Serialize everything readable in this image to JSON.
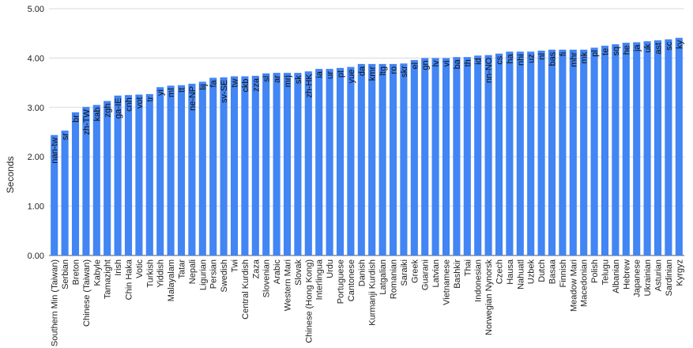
{
  "chart_data": {
    "type": "bar",
    "ylabel": "Seconds",
    "ylim": [
      0,
      5
    ],
    "yticks": [
      "0.00",
      "1.00",
      "2.00",
      "3.00",
      "4.00",
      "5.00"
    ],
    "grid": true,
    "bar_color": "#4285f4",
    "categories": [
      "Southern Min (Taiwan)",
      "Serbian",
      "Breton",
      "Chinese (Taiwan)",
      "Kabyle",
      "Tamazight",
      "Irish",
      "Chin Haka",
      "Votic",
      "Turkish",
      "Yiddish",
      "Malayalam",
      "Tatar",
      "Nepali",
      "Ligurian",
      "Persian",
      "Swedish",
      "Twi",
      "Central Kurdish",
      "Zaza",
      "Slovenian",
      "Arabic",
      "Western Mari",
      "Slovak",
      "Chinese (Hong Kong)",
      "Interlingua",
      "Urdu",
      "Portuguese",
      "Cantonese",
      "Danish",
      "Kurmanji Kurdish",
      "Latgalian",
      "Romanian",
      "Saraiki",
      "Greek",
      "Guarani",
      "Latvian",
      "Vietnamese",
      "Bashkir",
      "Thai",
      "Indonesian",
      "Norwegian Nynorsk",
      "Czech",
      "Hausa",
      "Nahuatl",
      "Uzbek",
      "Dutch",
      "Basaa",
      "Finnish",
      "Meadow Mari",
      "Macedonian",
      "Polish",
      "Telugu",
      "Albanian",
      "Hebrew",
      "Japanese",
      "Ukrainian",
      "Asturian",
      "Sardinian",
      "Kyrgyz"
    ],
    "codes": [
      "nan-tw",
      "sr",
      "br",
      "zh-TW",
      "kab",
      "zgh",
      "ga-IE",
      "cnh",
      "vot",
      "tr",
      "yi",
      "ml",
      "tt",
      "ne-NP",
      "lij",
      "fa",
      "sv-SE",
      "tw",
      "ckb",
      "zza",
      "sl",
      "ar",
      "mrj",
      "sk",
      "zh-HK",
      "ia",
      "ur",
      "pt",
      "yue",
      "da",
      "kmr",
      "ltg",
      "ro",
      "skr",
      "el",
      "gn",
      "lv",
      "vi",
      "ba",
      "th",
      "id",
      "nn-NO",
      "cs",
      "ha",
      "nhi",
      "uz",
      "nl",
      "bas",
      "fi",
      "mhr",
      "mk",
      "pl",
      "te",
      "sq",
      "he",
      "ja",
      "uk",
      "ast",
      "sc",
      "ky"
    ],
    "values": [
      2.44,
      2.53,
      2.9,
      3.01,
      3.05,
      3.13,
      3.24,
      3.25,
      3.26,
      3.27,
      3.41,
      3.44,
      3.45,
      3.48,
      3.52,
      3.6,
      3.61,
      3.63,
      3.63,
      3.64,
      3.69,
      3.7,
      3.7,
      3.7,
      3.73,
      3.78,
      3.78,
      3.8,
      3.82,
      3.88,
      3.88,
      3.88,
      3.88,
      3.89,
      3.96,
      4.0,
      4.0,
      4.0,
      4.02,
      4.02,
      4.05,
      4.06,
      4.09,
      4.13,
      4.13,
      4.13,
      4.15,
      4.17,
      4.17,
      4.17,
      4.17,
      4.21,
      4.25,
      4.28,
      4.31,
      4.32,
      4.34,
      4.36,
      4.38,
      4.41
    ]
  }
}
